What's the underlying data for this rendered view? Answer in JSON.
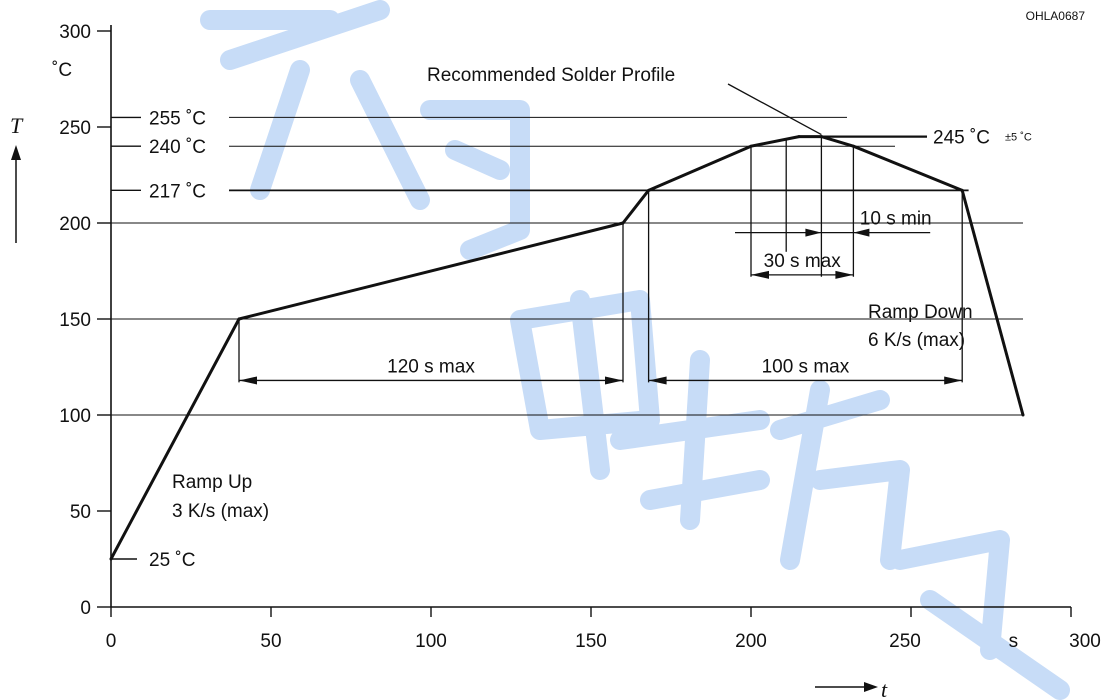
{
  "chart_data": {
    "type": "line",
    "title": "",
    "xlabel": "t",
    "ylabel": "T",
    "x_unit": "s",
    "y_unit": "˚C",
    "figure_code": "OHLA0687",
    "xlim": [
      0,
      300
    ],
    "ylim": [
      0,
      300
    ],
    "x_ticks": [
      0,
      50,
      100,
      150,
      200,
      250,
      300
    ],
    "y_ticks": [
      0,
      50,
      100,
      150,
      200,
      250,
      300
    ],
    "grid_y": [
      100,
      150,
      200
    ],
    "series": [
      {
        "name": "Recommended Solder Profile",
        "x": [
          0,
          40,
          160,
          168,
          200,
          215,
          222,
          232,
          266,
          285
        ],
        "y": [
          25,
          150,
          200,
          217,
          240,
          245,
          245,
          240,
          217,
          100
        ]
      }
    ],
    "reference_lines": [
      {
        "label": "255 ˚C",
        "y": 255,
        "x_end": 230
      },
      {
        "label": "240 ˚C",
        "y": 240,
        "x_end": 245
      },
      {
        "label": "217 ˚C",
        "y": 217,
        "x_end": 268
      },
      {
        "label": "245 ˚C",
        "y": 245,
        "x_start": 222,
        "x_end": 255,
        "tolerance": "±5 ˚C"
      }
    ],
    "start_label": "25 ˚C",
    "annotations": [
      {
        "text": "120 s max",
        "x_from": 40,
        "x_to": 160,
        "y": 118
      },
      {
        "text": "100 s max",
        "x_from": 168,
        "x_to": 266,
        "y": 118
      },
      {
        "text": "30 s max",
        "x_from": 200,
        "x_to": 232,
        "y": 173
      },
      {
        "text": "10 s min",
        "x_from": 217,
        "x_to": 232,
        "y": 195
      },
      {
        "text": "Ramp Up",
        "text2": "3 K/s (max)"
      },
      {
        "text": "Ramp Down",
        "text2": "6 K/s (max)"
      },
      {
        "text": "Recommended Solder Profile"
      }
    ]
  }
}
